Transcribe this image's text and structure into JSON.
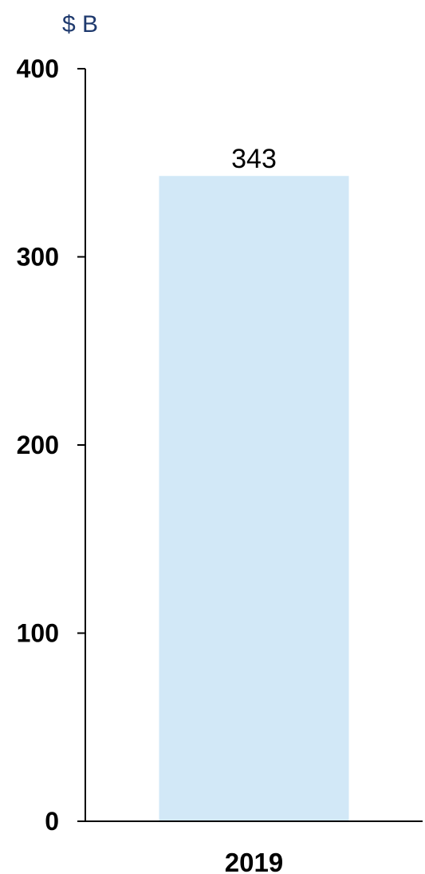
{
  "chart_data": {
    "type": "bar",
    "unit_label": "$ B",
    "categories": [
      "2019"
    ],
    "values": [
      343
    ],
    "data_labels": [
      "343"
    ],
    "ylim": [
      0,
      400
    ],
    "yticks": [
      {
        "value": 0,
        "label": "0"
      },
      {
        "value": 100,
        "label": "100"
      },
      {
        "value": 200,
        "label": "200"
      },
      {
        "value": 300,
        "label": "300"
      },
      {
        "value": 400,
        "label": "400"
      }
    ],
    "grid": false,
    "colors": {
      "bar": "#d2e8f7",
      "unit_label": "#1f3a6e",
      "axis": "#000000"
    }
  }
}
